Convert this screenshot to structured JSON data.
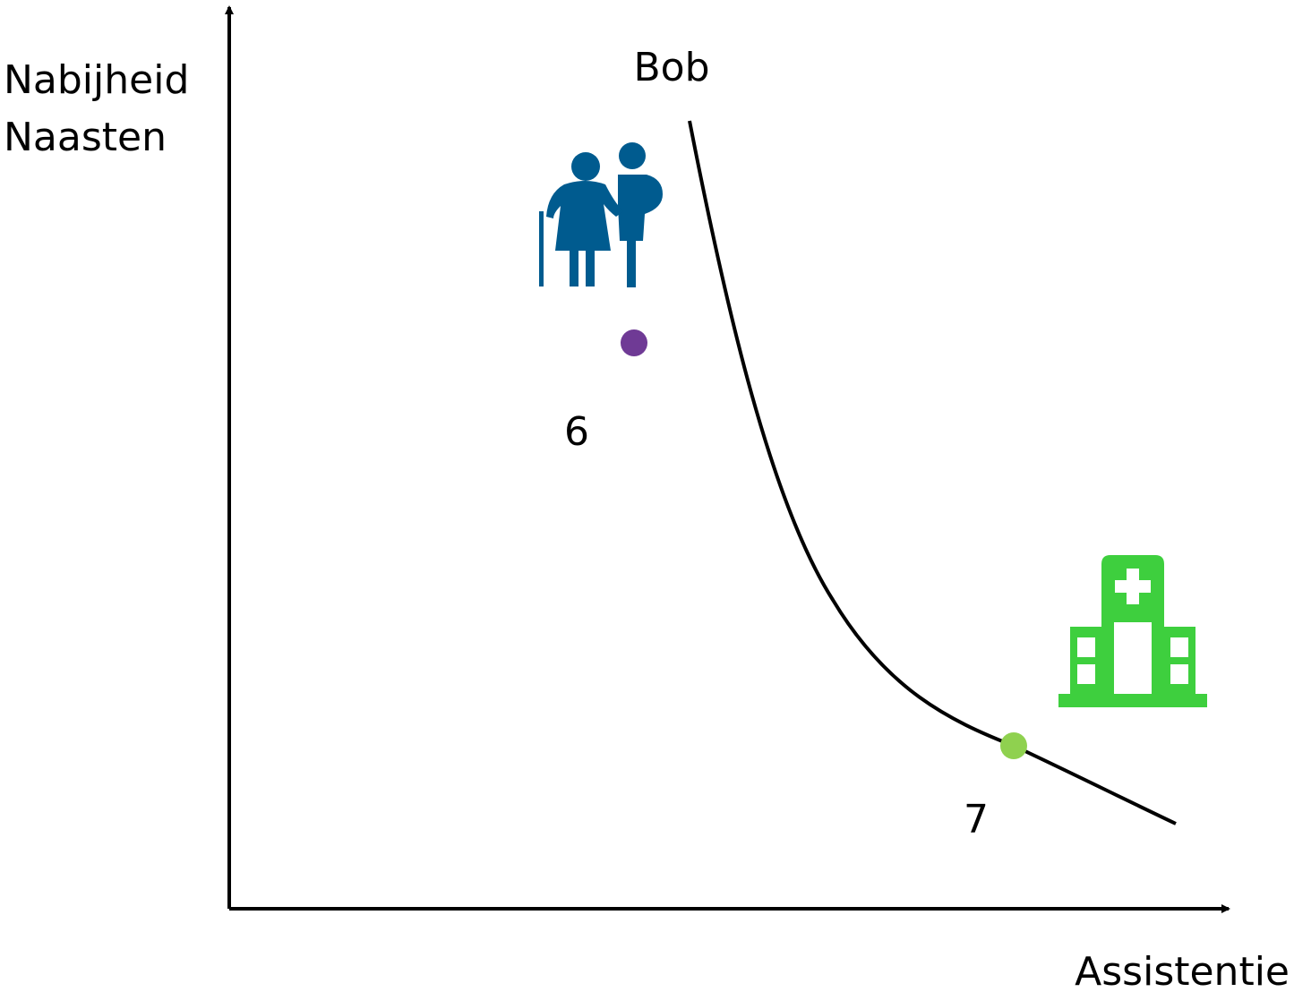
{
  "axes": {
    "y_label": [
      "Nabijheid",
      "Naasten"
    ],
    "x_label": "Assistentie"
  },
  "curve": {
    "label": "Bob"
  },
  "points": [
    {
      "label": "6",
      "color": "#6f3a95"
    },
    {
      "label": "7",
      "color": "#8fd14f"
    }
  ]
}
